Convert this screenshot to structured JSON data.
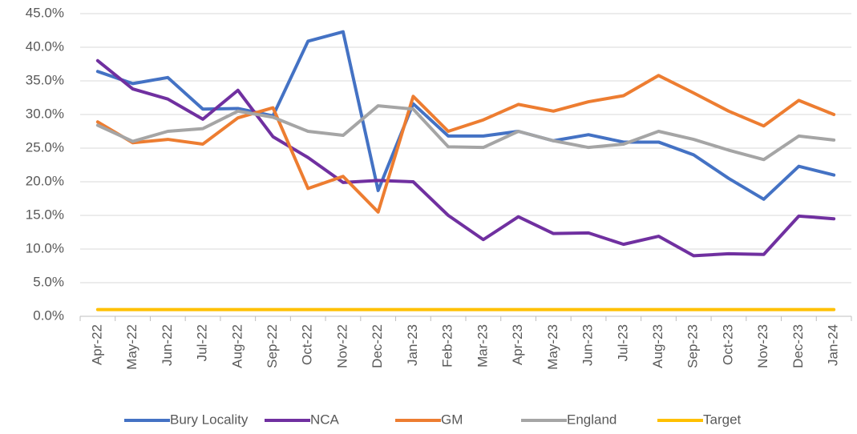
{
  "chart_data": {
    "type": "line",
    "categories": [
      "Apr-22",
      "May-22",
      "Jun-22",
      "Jul-22",
      "Aug-22",
      "Sep-22",
      "Oct-22",
      "Nov-22",
      "Dec-22",
      "Jan-23",
      "Feb-23",
      "Mar-23",
      "Apr-23",
      "May-23",
      "Jun-23",
      "Jul-23",
      "Aug-23",
      "Sep-23",
      "Oct-23",
      "Nov-23",
      "Dec-23",
      "Jan-24"
    ],
    "series": [
      {
        "name": "Bury Locality",
        "color": "#4472c4",
        "values": [
          36.4,
          34.6,
          35.5,
          30.8,
          30.9,
          29.8,
          40.9,
          42.3,
          18.7,
          31.6,
          26.8,
          26.8,
          27.5,
          26.1,
          27.0,
          25.9,
          25.9,
          24.0,
          20.5,
          17.4,
          22.3,
          21.0
        ]
      },
      {
        "name": "NCA",
        "color": "#7030a0",
        "values": [
          38.0,
          33.8,
          32.3,
          29.3,
          33.6,
          26.7,
          23.6,
          19.9,
          20.2,
          20.0,
          15.0,
          11.4,
          14.8,
          12.3,
          12.4,
          10.7,
          11.9,
          9.0,
          9.3,
          9.2,
          14.9,
          14.5
        ]
      },
      {
        "name": "GM",
        "color": "#ed7d31",
        "values": [
          28.9,
          25.8,
          26.3,
          25.6,
          29.5,
          31.0,
          19.0,
          20.8,
          15.5,
          32.7,
          27.5,
          29.2,
          31.5,
          30.5,
          31.9,
          32.8,
          35.8,
          33.2,
          30.5,
          28.3,
          32.1,
          30.0
        ]
      },
      {
        "name": "England",
        "color": "#a5a5a5",
        "values": [
          28.4,
          26.0,
          27.5,
          27.9,
          30.5,
          29.6,
          27.5,
          26.9,
          31.3,
          30.8,
          25.2,
          25.1,
          27.5,
          26.1,
          25.1,
          25.6,
          27.5,
          26.3,
          24.7,
          23.3,
          26.8,
          26.2
        ]
      },
      {
        "name": "Target",
        "color": "#ffc000",
        "values": [
          1.0,
          1.0,
          1.0,
          1.0,
          1.0,
          1.0,
          1.0,
          1.0,
          1.0,
          1.0,
          1.0,
          1.0,
          1.0,
          1.0,
          1.0,
          1.0,
          1.0,
          1.0,
          1.0,
          1.0,
          1.0,
          1.0
        ]
      }
    ],
    "ylim": [
      0,
      45
    ],
    "yticks": [
      {
        "value": 0,
        "label": "0.0%"
      },
      {
        "value": 5,
        "label": "5.0%"
      },
      {
        "value": 10,
        "label": "10.0%"
      },
      {
        "value": 15,
        "label": "15.0%"
      },
      {
        "value": 20,
        "label": "20.0%"
      },
      {
        "value": 25,
        "label": "25.0%"
      },
      {
        "value": 30,
        "label": "30.0%"
      },
      {
        "value": 35,
        "label": "35.0%"
      },
      {
        "value": 40,
        "label": "40.0%"
      },
      {
        "value": 45,
        "label": "45.0%"
      }
    ],
    "grid": true,
    "legend": "bottom"
  }
}
